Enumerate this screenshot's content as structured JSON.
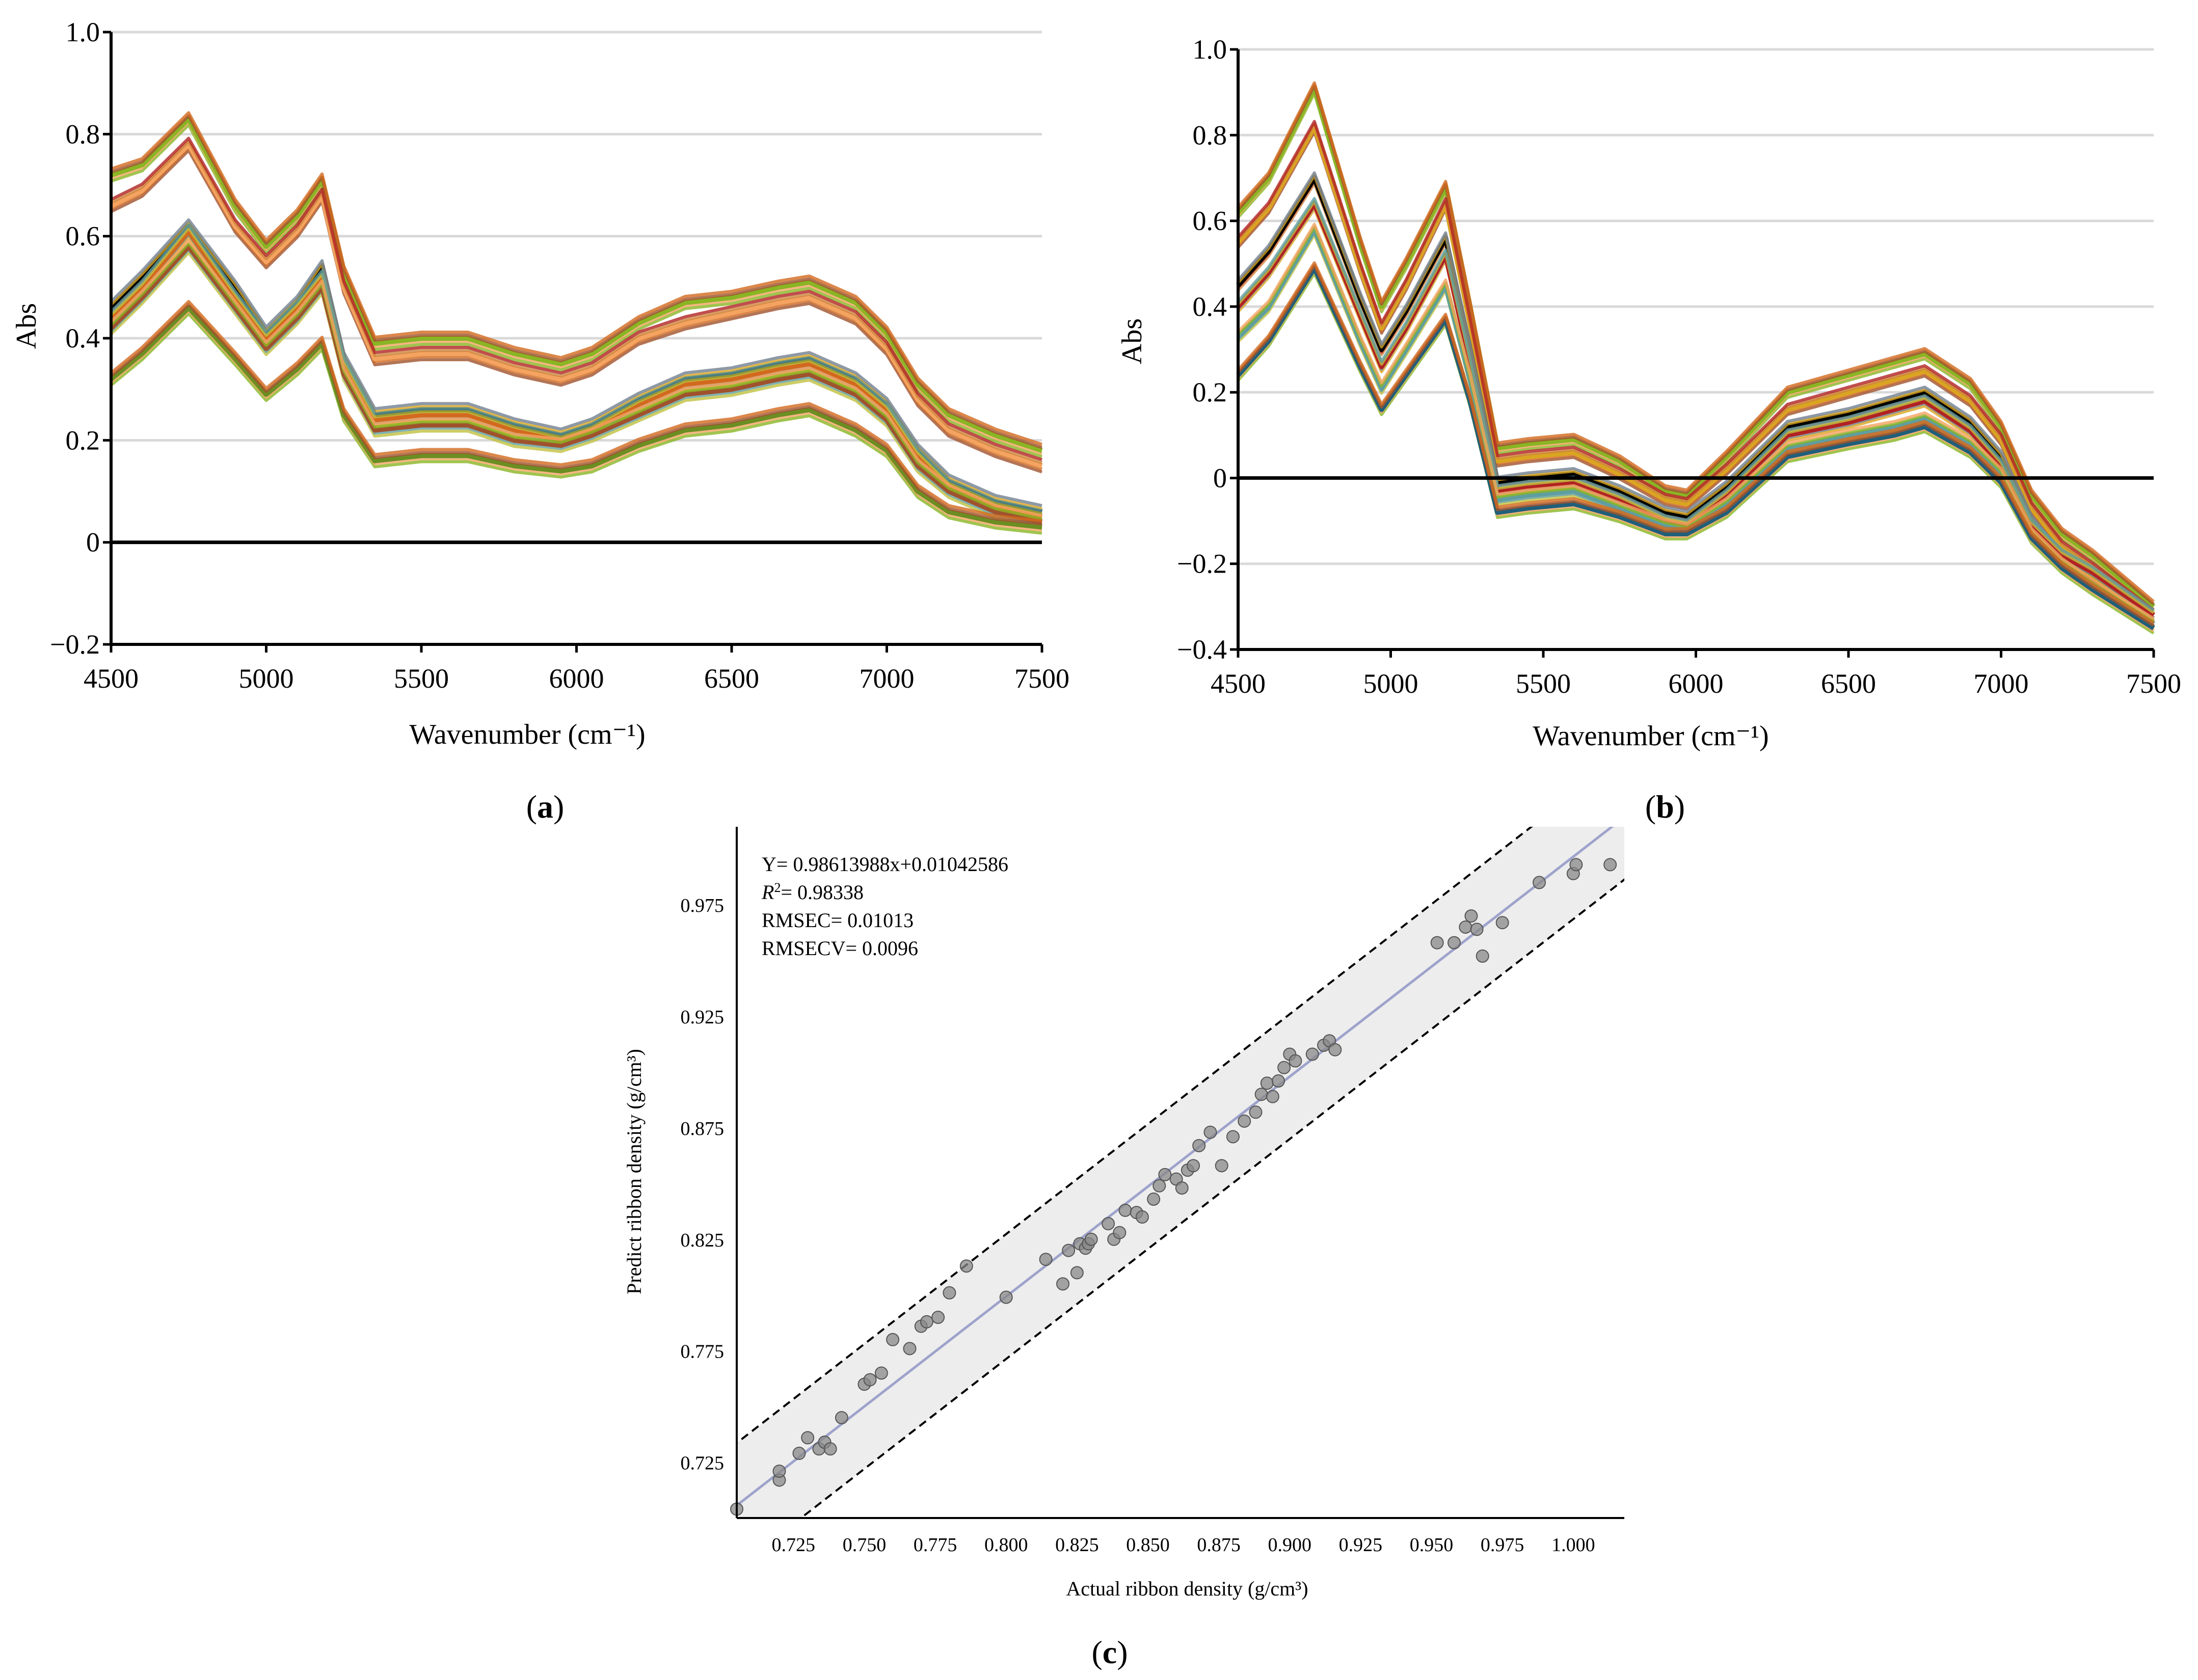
{
  "colors": {
    "grid": "#d9d9d9",
    "zero_line": "#000000",
    "fit_line": "#9ea3cc",
    "band_fill": "#ededed",
    "point": "#888888",
    "spectra_palette": [
      "#8ab524",
      "#f4a460",
      "#3c8dbc",
      "#a0522d",
      "#d2691e",
      "#6b8e23",
      "#cd853f",
      "#b22222",
      "#556b2f",
      "#daa520",
      "#708090",
      "#8b4513",
      "#c0c040",
      "#5f9ea0",
      "#e07040"
    ]
  },
  "panels": [
    {
      "id": "a",
      "label": "a",
      "xlabel": "Wavenumber (cm⁻¹)",
      "ylabel": "Abs",
      "xlim": [
        4500,
        7500
      ],
      "ylim": [
        -0.2,
        1.0
      ],
      "xticks": [
        "4500",
        "5000",
        "5500",
        "6000",
        "6500",
        "7000",
        "7500"
      ],
      "yticks": [
        "−0.2",
        "0",
        "0.2",
        "0.4",
        "0.6",
        "0.8",
        "1.0"
      ]
    },
    {
      "id": "b",
      "label": "b",
      "xlabel": "Wavenumber (cm⁻¹)",
      "ylabel": "Abs",
      "xlim": [
        4500,
        7500
      ],
      "ylim": [
        -0.4,
        1.0
      ],
      "xticks": [
        "4500",
        "5000",
        "5500",
        "6000",
        "6500",
        "7000",
        "7500"
      ],
      "yticks": [
        "−0.4",
        "−0.2",
        "0",
        "0.2",
        "0.4",
        "0.6",
        "0.8",
        "1.0"
      ]
    },
    {
      "id": "c",
      "label": "c",
      "xlabel": "Actual ribbon density (g/cm³)",
      "ylabel": "Predict ribbon density (g/cm³)",
      "xticks": [
        "0.725",
        "0.750",
        "0.775",
        "0.800",
        "0.825",
        "0.850",
        "0.875",
        "0.900",
        "0.925",
        "0.950",
        "0.975",
        "1.000"
      ],
      "yticks": [
        "0.725",
        "0.775",
        "0.825",
        "0.875",
        "0.925",
        "0.975"
      ],
      "stats": {
        "equation": "Y= 0.98613988x+0.01042586",
        "r2_label": "R",
        "r2_sup": "2",
        "r2_value": "= 0.98338",
        "rmsec": "RMSEC= 0.01013",
        "rmsecv": "RMSECV= 0.0096"
      }
    }
  ],
  "chart_data": [
    {
      "type": "line",
      "panel": "a",
      "xlabel": "Wavenumber (cm⁻¹)",
      "ylabel": "Abs",
      "xlim": [
        4500,
        7500
      ],
      "ylim": [
        -0.2,
        1.0
      ],
      "grid": true,
      "x": [
        4500,
        4600,
        4750,
        4900,
        5000,
        5100,
        5180,
        5250,
        5350,
        5500,
        5650,
        5800,
        5950,
        6050,
        6200,
        6350,
        6500,
        6650,
        6750,
        6900,
        7000,
        7100,
        7200,
        7350,
        7500
      ],
      "series": [
        {
          "color": "#8ab524",
          "values": [
            0.72,
            0.74,
            0.83,
            0.66,
            0.58,
            0.64,
            0.71,
            0.53,
            0.39,
            0.4,
            0.4,
            0.37,
            0.35,
            0.37,
            0.43,
            0.47,
            0.48,
            0.5,
            0.51,
            0.47,
            0.41,
            0.31,
            0.25,
            0.21,
            0.18
          ]
        },
        {
          "color": "#f4a460",
          "values": [
            0.66,
            0.69,
            0.78,
            0.62,
            0.55,
            0.61,
            0.68,
            0.5,
            0.36,
            0.37,
            0.37,
            0.34,
            0.32,
            0.34,
            0.4,
            0.43,
            0.45,
            0.47,
            0.48,
            0.44,
            0.38,
            0.28,
            0.22,
            0.18,
            0.15
          ]
        },
        {
          "color": "#000000",
          "values": [
            0.46,
            0.52,
            0.62,
            0.5,
            0.41,
            0.47,
            0.54,
            0.36,
            0.25,
            0.26,
            0.26,
            0.23,
            0.21,
            0.23,
            0.28,
            0.32,
            0.33,
            0.35,
            0.36,
            0.32,
            0.27,
            0.18,
            0.12,
            0.08,
            0.06
          ]
        },
        {
          "color": "#d2691e",
          "values": [
            0.44,
            0.5,
            0.61,
            0.48,
            0.4,
            0.46,
            0.52,
            0.35,
            0.24,
            0.25,
            0.25,
            0.22,
            0.2,
            0.22,
            0.27,
            0.31,
            0.32,
            0.34,
            0.35,
            0.31,
            0.26,
            0.17,
            0.11,
            0.07,
            0.05
          ]
        },
        {
          "color": "#a0522d",
          "values": [
            0.42,
            0.48,
            0.58,
            0.46,
            0.38,
            0.44,
            0.5,
            0.33,
            0.22,
            0.23,
            0.23,
            0.2,
            0.19,
            0.21,
            0.25,
            0.29,
            0.3,
            0.32,
            0.33,
            0.29,
            0.24,
            0.15,
            0.1,
            0.06,
            0.04
          ]
        },
        {
          "color": "#6b8e23",
          "values": [
            0.32,
            0.37,
            0.46,
            0.36,
            0.29,
            0.34,
            0.39,
            0.25,
            0.16,
            0.17,
            0.17,
            0.15,
            0.14,
            0.15,
            0.19,
            0.22,
            0.23,
            0.25,
            0.26,
            0.22,
            0.18,
            0.1,
            0.06,
            0.04,
            0.03
          ]
        }
      ]
    },
    {
      "type": "line",
      "panel": "b",
      "xlabel": "Wavenumber (cm⁻¹)",
      "ylabel": "Abs",
      "xlim": [
        4500,
        7500
      ],
      "ylim": [
        -0.4,
        1.0
      ],
      "grid": true,
      "x": [
        4500,
        4600,
        4750,
        4900,
        4970,
        5050,
        5180,
        5260,
        5350,
        5450,
        5600,
        5750,
        5900,
        5970,
        6100,
        6300,
        6500,
        6650,
        6750,
        6900,
        7000,
        7100,
        7200,
        7300,
        7500
      ],
      "series": [
        {
          "color": "#8ab524",
          "values": [
            0.62,
            0.7,
            0.91,
            0.55,
            0.4,
            0.5,
            0.68,
            0.4,
            0.07,
            0.08,
            0.09,
            0.04,
            -0.03,
            -0.04,
            0.05,
            0.2,
            0.24,
            0.27,
            0.29,
            0.22,
            0.12,
            -0.04,
            -0.13,
            -0.18,
            -0.3
          ]
        },
        {
          "color": "#daa520",
          "values": [
            0.55,
            0.63,
            0.82,
            0.49,
            0.35,
            0.45,
            0.64,
            0.36,
            0.04,
            0.05,
            0.06,
            0.01,
            -0.05,
            -0.06,
            0.02,
            0.16,
            0.2,
            0.23,
            0.25,
            0.18,
            0.09,
            -0.07,
            -0.16,
            -0.21,
            -0.32
          ]
        },
        {
          "color": "#000000",
          "values": [
            0.45,
            0.53,
            0.7,
            0.42,
            0.3,
            0.39,
            0.56,
            0.3,
            -0.01,
            0.0,
            0.01,
            -0.03,
            -0.08,
            -0.09,
            -0.02,
            0.12,
            0.15,
            0.18,
            0.2,
            0.13,
            0.05,
            -0.1,
            -0.19,
            -0.24,
            -0.34
          ]
        },
        {
          "color": "#b22222",
          "values": [
            0.4,
            0.48,
            0.64,
            0.38,
            0.26,
            0.35,
            0.52,
            0.27,
            -0.03,
            -0.02,
            -0.01,
            -0.05,
            -0.1,
            -0.11,
            -0.04,
            0.1,
            0.13,
            0.16,
            0.18,
            0.11,
            0.03,
            -0.11,
            -0.18,
            -0.22,
            -0.32
          ]
        },
        {
          "color": "#5f9ea0",
          "values": [
            0.33,
            0.4,
            0.58,
            0.32,
            0.21,
            0.3,
            0.45,
            0.23,
            -0.05,
            -0.04,
            -0.03,
            -0.07,
            -0.11,
            -0.12,
            -0.06,
            0.07,
            0.1,
            0.12,
            0.14,
            0.08,
            0.01,
            -0.13,
            -0.2,
            -0.25,
            -0.34
          ]
        },
        {
          "color": "#1f5f7a",
          "values": [
            0.24,
            0.32,
            0.49,
            0.26,
            0.16,
            0.24,
            0.37,
            0.18,
            -0.08,
            -0.07,
            -0.06,
            -0.09,
            -0.13,
            -0.13,
            -0.08,
            0.05,
            0.08,
            0.1,
            0.12,
            0.06,
            -0.01,
            -0.14,
            -0.21,
            -0.26,
            -0.35
          ]
        }
      ]
    },
    {
      "type": "scatter",
      "panel": "c",
      "xlabel": "Actual ribbon density (g/cm³)",
      "ylabel": "Predict ribbon density (g/cm³)",
      "xlim": [
        0.705,
        1.018
      ],
      "ylim": [
        0.7,
        1.01
      ],
      "grid": false,
      "fit": {
        "slope": 0.98613988,
        "intercept": 0.01042586,
        "band": 0.028
      },
      "x": [
        0.705,
        0.72,
        0.72,
        0.727,
        0.73,
        0.734,
        0.736,
        0.738,
        0.742,
        0.75,
        0.752,
        0.756,
        0.76,
        0.766,
        0.77,
        0.772,
        0.776,
        0.78,
        0.786,
        0.8,
        0.814,
        0.82,
        0.822,
        0.825,
        0.826,
        0.828,
        0.829,
        0.83,
        0.836,
        0.838,
        0.84,
        0.842,
        0.846,
        0.848,
        0.852,
        0.854,
        0.856,
        0.86,
        0.862,
        0.864,
        0.866,
        0.868,
        0.872,
        0.876,
        0.88,
        0.884,
        0.888,
        0.89,
        0.892,
        0.894,
        0.896,
        0.898,
        0.9,
        0.902,
        0.908,
        0.912,
        0.914,
        0.916,
        0.952,
        0.958,
        0.962,
        0.964,
        0.966,
        0.968,
        0.975,
        0.988,
        1.0,
        1.001,
        1.013
      ],
      "y": [
        0.704,
        0.717,
        0.721,
        0.729,
        0.736,
        0.731,
        0.734,
        0.731,
        0.745,
        0.76,
        0.762,
        0.765,
        0.78,
        0.776,
        0.786,
        0.788,
        0.79,
        0.801,
        0.813,
        0.799,
        0.816,
        0.805,
        0.82,
        0.81,
        0.823,
        0.821,
        0.823,
        0.825,
        0.832,
        0.825,
        0.828,
        0.838,
        0.837,
        0.835,
        0.843,
        0.849,
        0.854,
        0.852,
        0.848,
        0.856,
        0.858,
        0.867,
        0.873,
        0.858,
        0.871,
        0.878,
        0.882,
        0.89,
        0.895,
        0.889,
        0.896,
        0.902,
        0.908,
        0.905,
        0.908,
        0.912,
        0.914,
        0.91,
        0.958,
        0.958,
        0.965,
        0.97,
        0.964,
        0.952,
        0.967,
        0.985,
        0.989,
        0.993,
        0.993
      ]
    }
  ]
}
